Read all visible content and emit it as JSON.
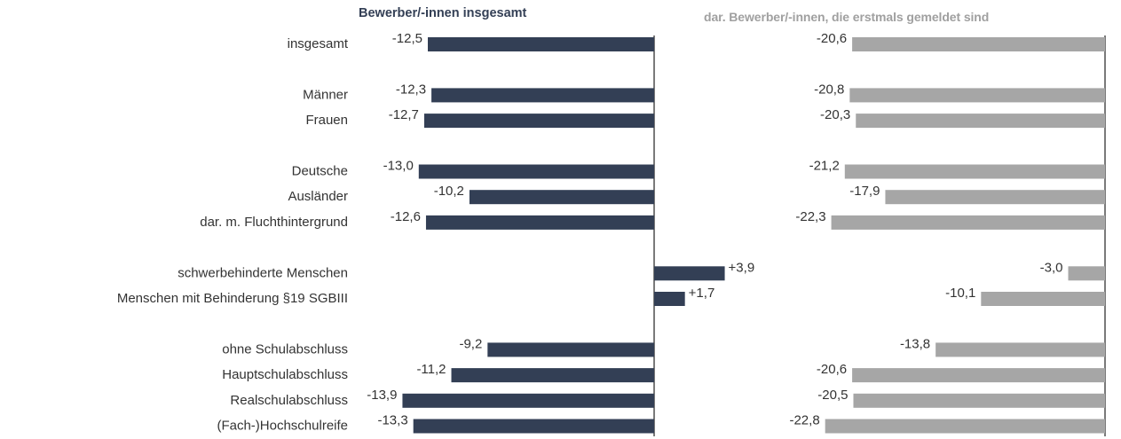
{
  "chart_data": [
    {
      "type": "hbar",
      "title": "Bewerber/-innen insgesamt",
      "color": "#333f55",
      "categories": [
        "insgesamt",
        null,
        "Männer",
        "Frauen",
        null,
        "Deutsche",
        "Ausländer",
        "dar. m. Fluchthintergrund",
        null,
        "schwerbehinderte Menschen",
        "Menschen mit Behinderung §19 SGBIII",
        null,
        "ohne Schulabschluss",
        "Hauptschulabschluss",
        "Realschulabschluss",
        "(Fach-)Hochschulreife"
      ],
      "values": [
        -12.5,
        null,
        -12.3,
        -12.7,
        null,
        -13.0,
        -10.2,
        -12.6,
        null,
        3.9,
        1.7,
        null,
        -9.2,
        -11.2,
        -13.9,
        -13.3
      ],
      "value_labels": [
        "-12,5",
        null,
        "-12,3",
        "-12,7",
        null,
        "-13,0",
        "-10,2",
        "-12,6",
        null,
        "+3,9",
        "+1,7",
        null,
        "-9,2",
        "-11,2",
        "-13,9",
        "-13,3"
      ]
    },
    {
      "type": "hbar",
      "title": "dar. Bewerber/-innen, die erstmals gemeldet sind",
      "color": "#a6a6a6",
      "values": [
        -20.6,
        null,
        -20.8,
        -20.3,
        null,
        -21.2,
        -17.9,
        -22.3,
        null,
        -3.0,
        -10.1,
        null,
        -13.8,
        -20.6,
        -20.5,
        -22.8
      ],
      "value_labels": [
        "-20,6",
        null,
        "-20,8",
        "-20,3",
        null,
        "-21,2",
        "-17,9",
        "-22,3",
        null,
        "-3,0",
        "-10,1",
        null,
        "-13,8",
        "-20,6",
        "-20,5",
        "-22,8"
      ]
    }
  ]
}
